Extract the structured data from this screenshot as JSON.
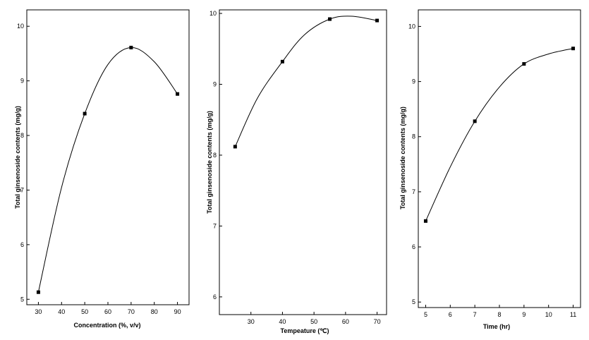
{
  "chart_data": [
    {
      "type": "line",
      "xlabel": "Concentration (%, v/v)",
      "ylabel": "Total ginsenoside contents (mg/g)",
      "xlim": [
        25,
        95
      ],
      "ylim": [
        4.9,
        10.3
      ],
      "xticks": [
        30,
        40,
        50,
        60,
        70,
        80,
        90
      ],
      "yticks": [
        5,
        6,
        7,
        8,
        9,
        10
      ],
      "series": [
        {
          "x": [
            30,
            50,
            70,
            90
          ],
          "y": [
            5.13,
            8.4,
            9.61,
            8.76
          ]
        }
      ],
      "curve": [
        [
          30,
          5.13
        ],
        [
          40,
          7.05
        ],
        [
          50,
          8.4
        ],
        [
          60,
          9.3
        ],
        [
          70,
          9.61
        ],
        [
          80,
          9.35
        ],
        [
          90,
          8.76
        ]
      ]
    },
    {
      "type": "line",
      "xlabel": "Tempeature (℃)",
      "ylabel": "Total ginsenoside contents (mg/g)",
      "xlim": [
        20,
        73
      ],
      "ylim": [
        5.75,
        10.05
      ],
      "xticks": [
        30,
        40,
        50,
        60,
        70
      ],
      "yticks": [
        6,
        7,
        8,
        9,
        10
      ],
      "series": [
        {
          "x": [
            25,
            40,
            55,
            70
          ],
          "y": [
            8.12,
            9.32,
            9.92,
            9.9
          ]
        }
      ],
      "curve": [
        [
          25,
          8.12
        ],
        [
          32,
          8.8
        ],
        [
          40,
          9.32
        ],
        [
          47,
          9.7
        ],
        [
          55,
          9.92
        ],
        [
          62,
          9.96
        ],
        [
          70,
          9.9
        ]
      ]
    },
    {
      "type": "line",
      "xlabel": "Time (hr)",
      "ylabel": "Total ginsenoside contents (mg/g)",
      "xlim": [
        4.7,
        11.3
      ],
      "ylim": [
        4.9,
        10.3
      ],
      "xticks": [
        5,
        6,
        7,
        8,
        9,
        10,
        11
      ],
      "yticks": [
        5,
        6,
        7,
        8,
        9,
        10
      ],
      "series": [
        {
          "x": [
            5,
            7,
            9,
            11
          ],
          "y": [
            6.47,
            8.28,
            9.32,
            9.6
          ]
        }
      ],
      "curve": [
        [
          5,
          6.47
        ],
        [
          6,
          7.45
        ],
        [
          7,
          8.28
        ],
        [
          8,
          8.9
        ],
        [
          9,
          9.32
        ],
        [
          10,
          9.5
        ],
        [
          11,
          9.6
        ]
      ]
    }
  ]
}
